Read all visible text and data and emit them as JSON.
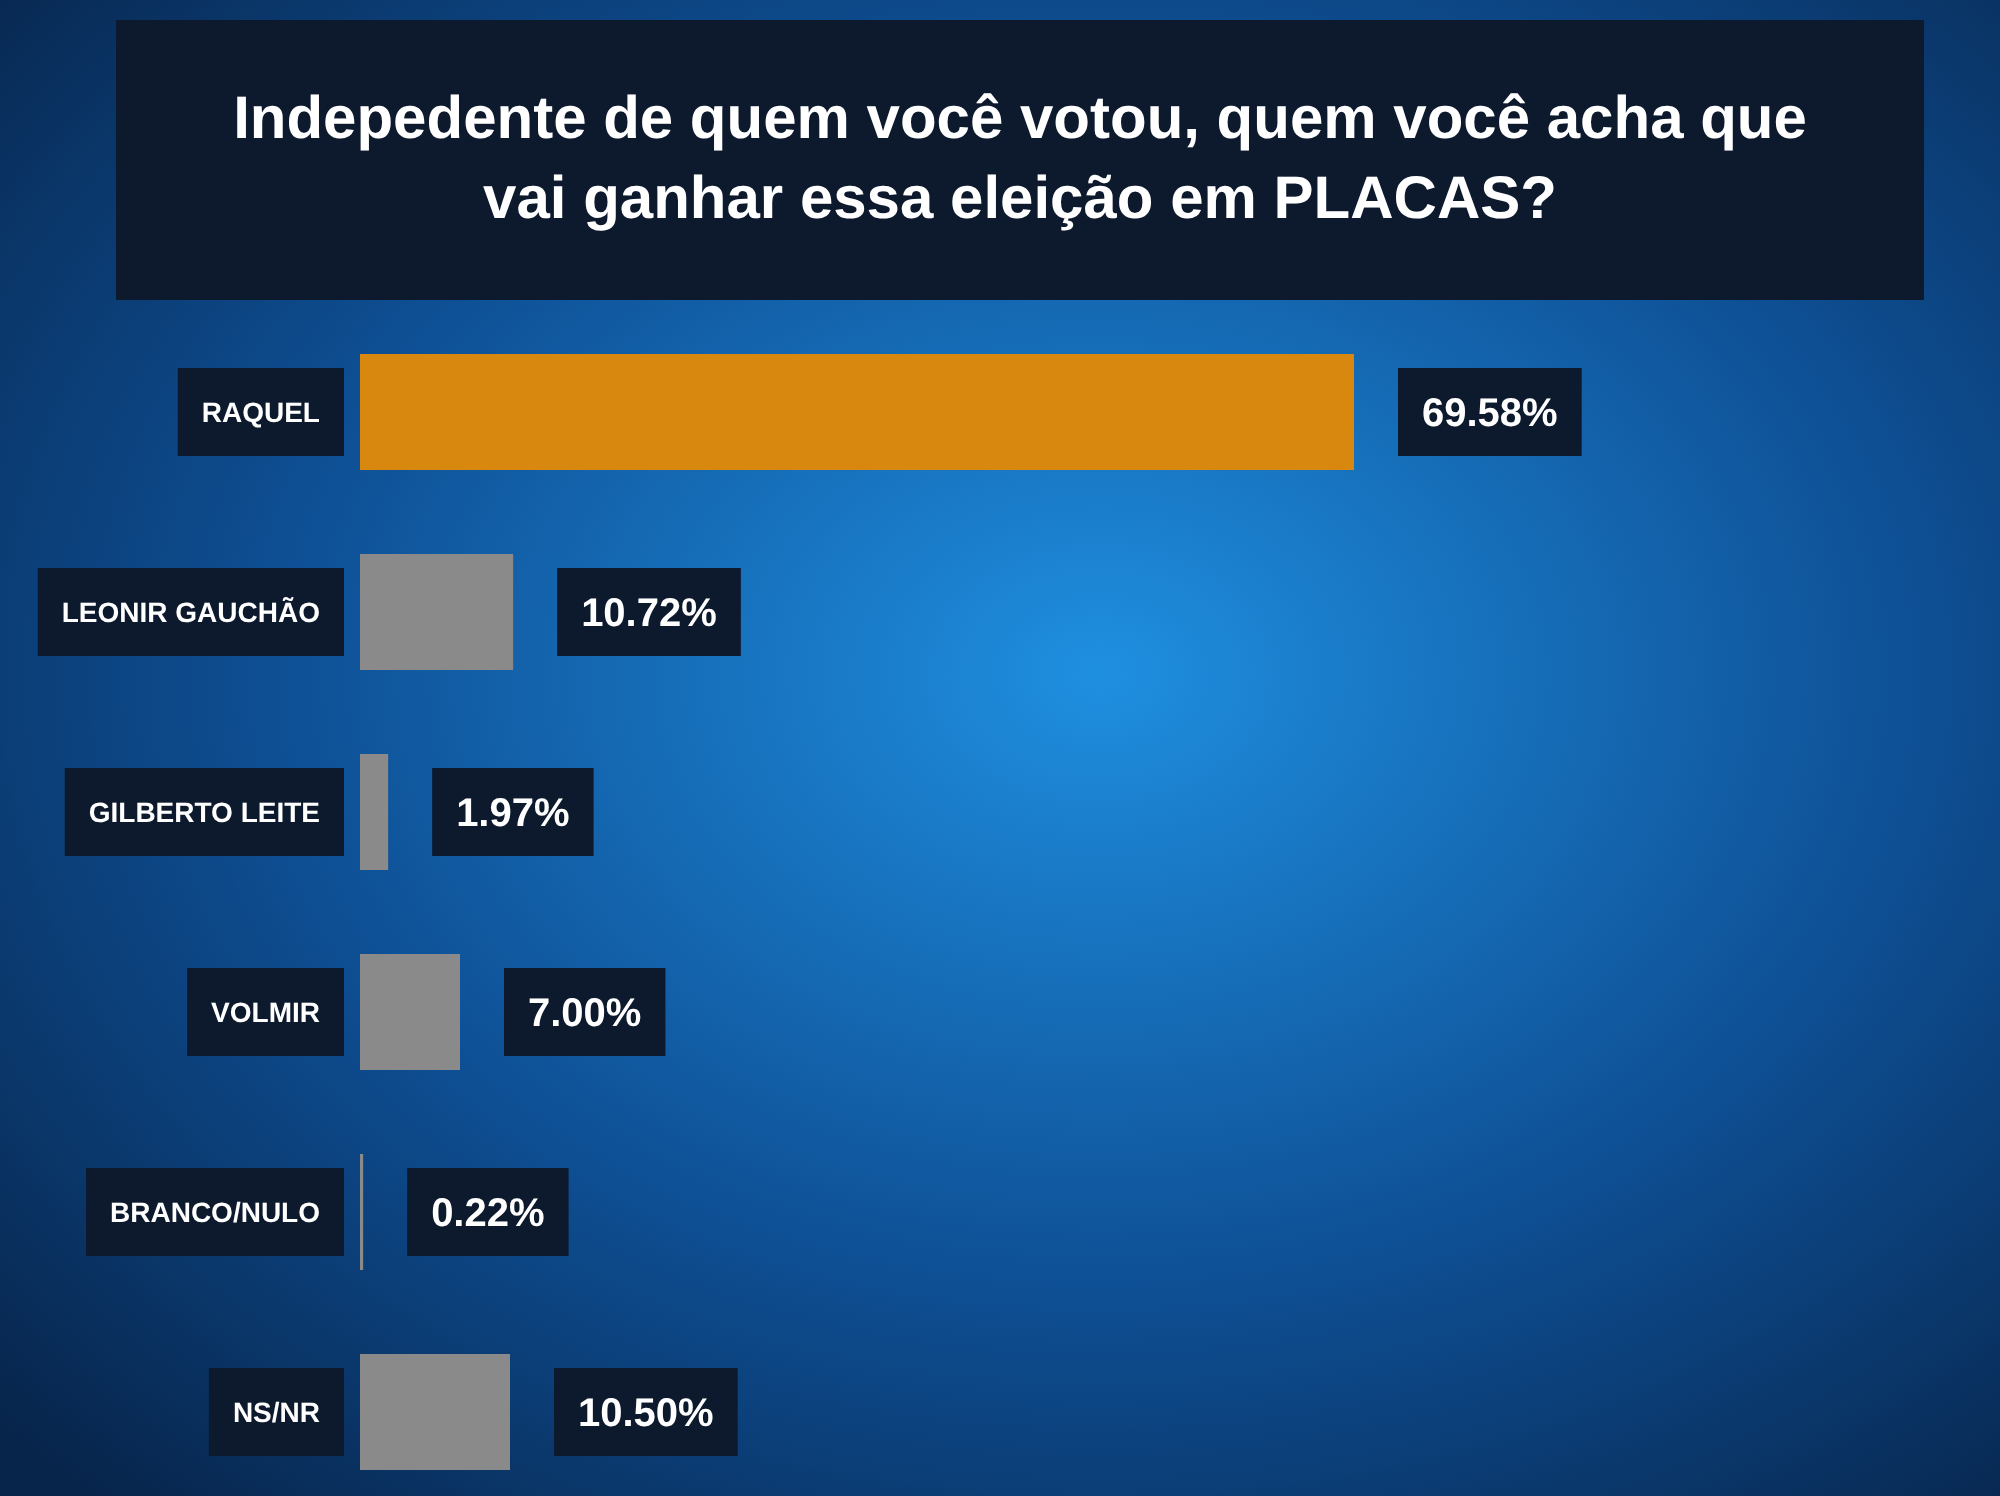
{
  "chart_data": {
    "type": "bar",
    "orientation": "horizontal",
    "title": "Indepedente de quem você votou, quem você acha que vai ganhar essa eleição em PLACAS?",
    "categories": [
      "RAQUEL",
      "LEONIR GAUCHÃO",
      "GILBERTO LEITE",
      "VOLMIR",
      "BRANCO/NULO",
      "NS/NR"
    ],
    "values": [
      69.58,
      10.72,
      1.97,
      7.0,
      0.22,
      10.5
    ],
    "colors": [
      "#d8880f",
      "#8a8a8a",
      "#8a8a8a",
      "#8a8a8a",
      "#8a8a8a",
      "#8a8a8a"
    ],
    "value_labels": [
      "69.58%",
      "10.72%",
      "1.97%",
      "7.00%",
      "0.22%",
      "10.50%"
    ]
  }
}
